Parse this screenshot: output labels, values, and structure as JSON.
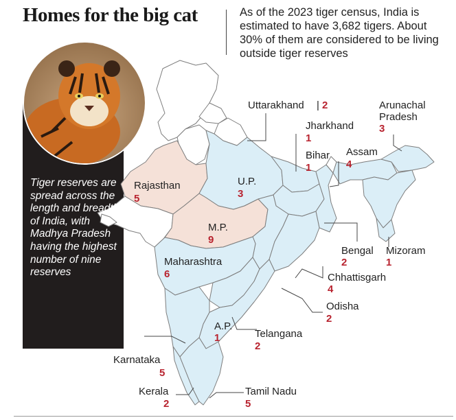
{
  "title": "Homes for the big cat",
  "intro": "As of the 2023 tiger census, India is estimated to have 3,682 tigers. About 30% of them are considered to be living outside tiger reserves",
  "panel_text": "Tiger reserves are spread across the length and breadth of India, with Madhya Pradesh having the highest number of nine reserves",
  "colors": {
    "reserve_states": "#dbeef7",
    "highlight_states": "#f5e1d8",
    "other_states": "#ffffff",
    "number": "#b8232f",
    "panel": "#211d1d"
  },
  "states": [
    {
      "name": "Uttarakhand",
      "reserves": "2"
    },
    {
      "name": "Jharkhand",
      "reserves": "1"
    },
    {
      "name": "Arunachal Pradesh",
      "reserves": "3"
    },
    {
      "name": "Bihar",
      "reserves": "1"
    },
    {
      "name": "Assam",
      "reserves": "4"
    },
    {
      "name": "Rajasthan",
      "reserves": "5"
    },
    {
      "name": "U.P.",
      "reserves": "3"
    },
    {
      "name": "M.P.",
      "reserves": "9"
    },
    {
      "name": "Bengal",
      "reserves": "2"
    },
    {
      "name": "Mizoram",
      "reserves": "1"
    },
    {
      "name": "Maharashtra",
      "reserves": "6"
    },
    {
      "name": "Chhattisgarh",
      "reserves": "4"
    },
    {
      "name": "Odisha",
      "reserves": "2"
    },
    {
      "name": "A.P.",
      "reserves": "1"
    },
    {
      "name": "Telangana",
      "reserves": "2"
    },
    {
      "name": "Karnataka",
      "reserves": "5"
    },
    {
      "name": "Kerala",
      "reserves": "2"
    },
    {
      "name": "Tamil Nadu",
      "reserves": "5"
    }
  ]
}
